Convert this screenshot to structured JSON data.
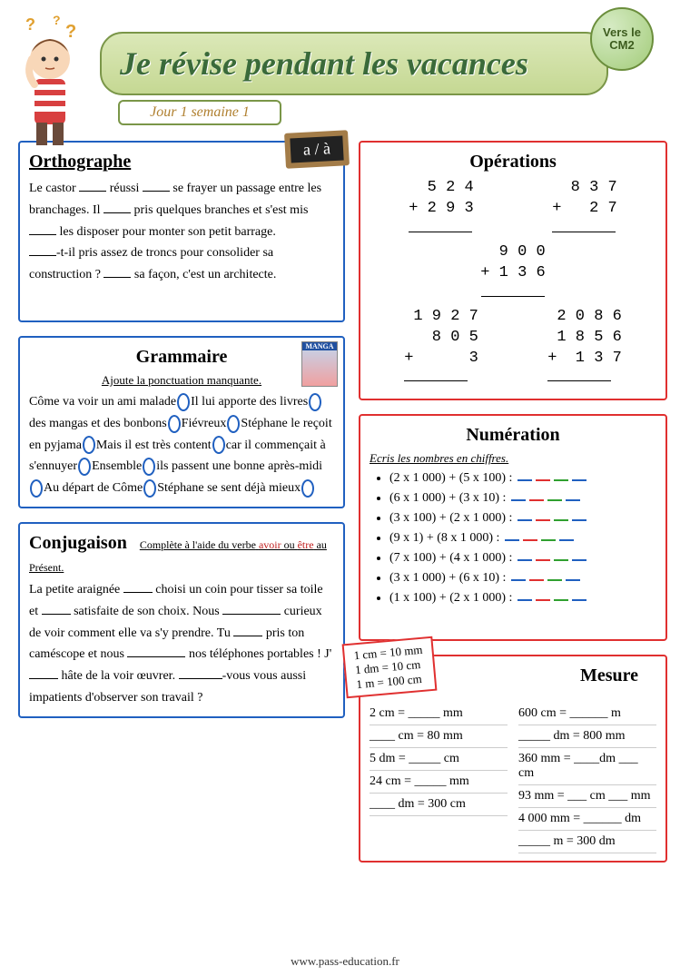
{
  "badge": {
    "line1": "Vers le",
    "line2": "CM2"
  },
  "title": "Je révise pendant les vacances",
  "day_label": "Jour 1 semaine 1",
  "orthographe": {
    "heading": "Orthographe",
    "chalk": "a / à",
    "text": "Le castor ___ réussi ___ se frayer un passage entre les branchages. Il ___ pris quelques branches et s'est mis ___ les disposer pour monter son petit barrage.\n___-t-il pris assez de troncs pour consolider sa construction ? ___ sa façon, c'est un architecte."
  },
  "operations": {
    "heading": "Opérations",
    "rows": [
      [
        "  5 2 4\n+ 2 9 3\n———————",
        "  8 3 7\n+   2 7\n———————"
      ],
      [
        "  9 0 0\n+ 1 3 6\n———————"
      ],
      [
        " 1 9 2 7\n   8 0 5\n+      3\n—————————",
        " 2 0 8 6\n 1 8 5 6\n+  1 3 7\n—————————"
      ]
    ]
  },
  "grammaire": {
    "heading": "Grammaire",
    "instruction": "Ajoute la ponctuation manquante.",
    "segments": [
      "Côme va voir un ami malade",
      "Il lui apporte des livres",
      "des mangas et des bonbons",
      "Fiévreux",
      "Stéphane le reçoit en pyjama",
      "Mais   il est très content",
      "car il commençait à s'ennuyer",
      "Ensemble",
      "ils passent une bonne après-midi",
      "Au départ de Côme",
      "Stéphane se sent déjà mieux"
    ],
    "manga_label": "MANGA"
  },
  "numeration": {
    "heading": "Numération",
    "instruction": "Ecris les nombres en chiffres.",
    "items": [
      "(2 x 1 000) + (5 x 100) :",
      "(6 x 1 000) + (3 x 10) :",
      "(3 x 100) + (2 x 1 000) :",
      "(9 x 1) + (8 x 1 000) :",
      "(7 x 100) + (4 x 1 000) :",
      "(3 x 1 000) + (6 x 10) :",
      "(1 x 100) + (2 x 1 000) :"
    ]
  },
  "conjugaison": {
    "heading": "Conjugaison",
    "instruction_pre": "Complète à l'aide du verbe",
    "instruction_verbs_a": "avoir",
    "instruction_ou": " ou ",
    "instruction_verbs_b": "être",
    "instruction_post": " au Présent.",
    "text": "La petite araignée ____ choisi un coin pour tisser sa toile et ____ satisfaite de son choix. Nous ________ curieux de voir comment elle va s'y prendre. Tu ____ pris ton caméscope et nous ________ nos téléphones portables ! J'____ hâte de la voir œuvrer. ______-vous vous aussi impatients d'observer son travail ?"
  },
  "mesure": {
    "heading": "Mesure",
    "ref": [
      "1 cm = 10 mm",
      "1 dm = 10 cm",
      "1 m = 100 cm"
    ],
    "left": [
      "2 cm = _____ mm",
      "____ cm = 80 mm",
      "5 dm = _____ cm",
      "24 cm = _____ mm",
      "____ dm = 300 cm"
    ],
    "right": [
      "600 cm = ______ m",
      "_____ dm = 800 mm",
      "360 mm = ____dm ___ cm",
      "93 mm = ___ cm ___ mm",
      "4 000 mm = ______ dm",
      "_____ m = 300 dm"
    ]
  },
  "footer": "www.pass-education.fr"
}
